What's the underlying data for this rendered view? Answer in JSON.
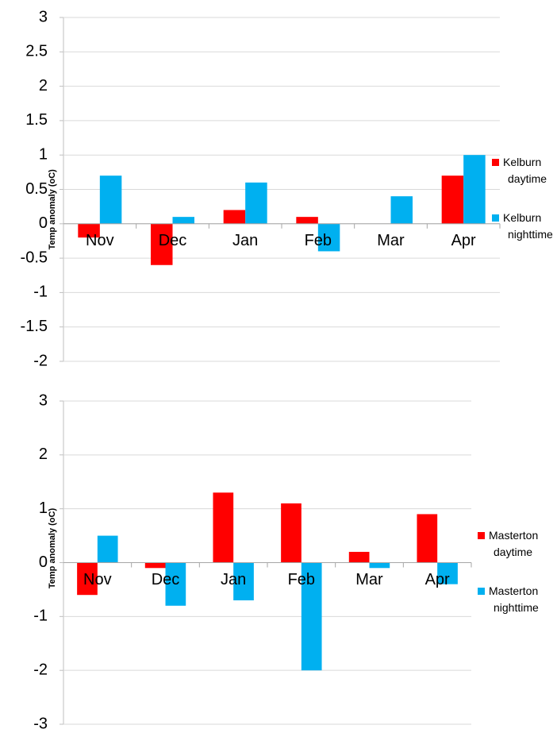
{
  "chart_data": [
    {
      "type": "bar",
      "y_label": "Temp anomaly (oC)",
      "categories": [
        "Nov",
        "Dec",
        "Jan",
        "Feb",
        "Mar",
        "Apr"
      ],
      "series": [
        {
          "name": "Kelburn daytime",
          "color": "#ff0000",
          "values": [
            -0.2,
            -0.6,
            0.2,
            0.1,
            0,
            0.7
          ]
        },
        {
          "name": "Kelburn nighttime",
          "color": "#00b0f0",
          "values": [
            0.7,
            0.1,
            0.6,
            -0.4,
            0.4,
            1.0
          ]
        }
      ],
      "ylim": [
        -2,
        3
      ],
      "yticks": [
        -2,
        -1.5,
        -1,
        -0.5,
        0,
        0.5,
        1,
        1.5,
        2,
        2.5,
        3
      ],
      "grid": true,
      "legend": "right"
    },
    {
      "type": "bar",
      "y_label": "Temp anomaly (oC)",
      "categories": [
        "Nov",
        "Dec",
        "Jan",
        "Feb",
        "Mar",
        "Apr"
      ],
      "series": [
        {
          "name": "Masterton daytime",
          "color": "#ff0000",
          "values": [
            -0.6,
            -0.1,
            1.3,
            1.1,
            0.2,
            0.9
          ]
        },
        {
          "name": "Masterton nighttime",
          "color": "#00b0f0",
          "values": [
            0.5,
            -0.8,
            -0.7,
            -2,
            -0.1,
            -0.4
          ]
        }
      ],
      "ylim": [
        -3,
        3
      ],
      "yticks": [
        -3,
        -2,
        -1,
        0,
        1,
        2,
        3
      ],
      "grid": true,
      "legend": "right"
    }
  ]
}
